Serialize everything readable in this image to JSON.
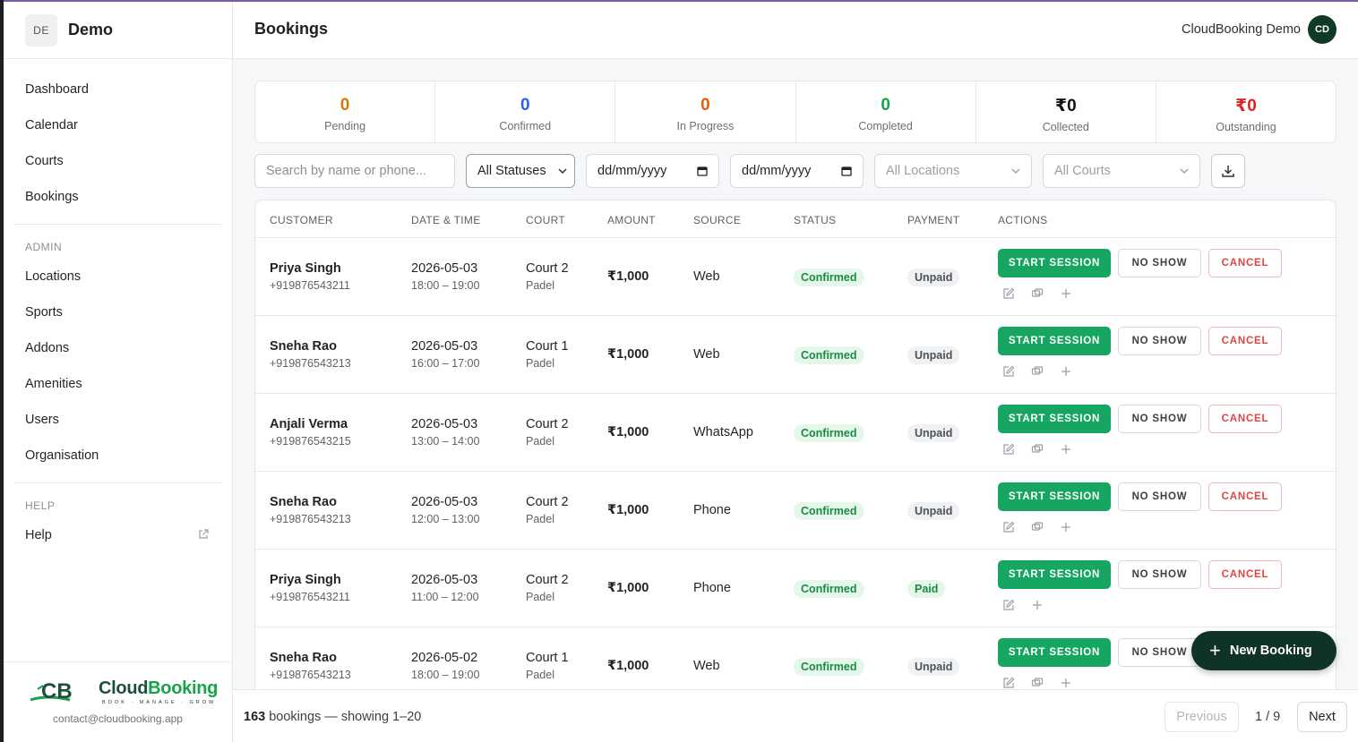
{
  "org": {
    "initials": "DE",
    "name": "Demo"
  },
  "header": {
    "title": "Bookings",
    "user_name": "CloudBooking Demo",
    "user_initials": "CD"
  },
  "sidebar": {
    "main_items": [
      "Dashboard",
      "Calendar",
      "Courts",
      "Bookings"
    ],
    "admin_label": "ADMIN",
    "admin_items": [
      "Locations",
      "Sports",
      "Addons",
      "Amenities",
      "Users",
      "Organisation"
    ],
    "help_label": "HELP",
    "help_item": "Help",
    "brand_cloud": "Cloud",
    "brand_booking": "Booking",
    "brand_tagline": "BOOK · MANAGE · GROW",
    "contact": "contact@cloudbooking.app"
  },
  "stats": [
    {
      "value": "0",
      "label": "Pending",
      "color": "#d97706"
    },
    {
      "value": "0",
      "label": "Confirmed",
      "color": "#2563eb"
    },
    {
      "value": "0",
      "label": "In Progress",
      "color": "#ea580c"
    },
    {
      "value": "0",
      "label": "Completed",
      "color": "#16a34a"
    },
    {
      "value": "₹0",
      "label": "Collected",
      "color": "#111111"
    },
    {
      "value": "₹0",
      "label": "Outstanding",
      "color": "#dc2626"
    }
  ],
  "filters": {
    "search_placeholder": "Search by name or phone...",
    "status": "All Statuses",
    "date_from": "dd/mm/yyyy",
    "date_to": "dd/mm/yyyy",
    "location": "All Locations",
    "court": "All Courts"
  },
  "table": {
    "headers": [
      "CUSTOMER",
      "DATE & TIME",
      "COURT",
      "AMOUNT",
      "SOURCE",
      "STATUS",
      "PAYMENT",
      "ACTIONS"
    ],
    "actions": {
      "start": "START SESSION",
      "noshow": "NO SHOW",
      "cancel": "CANCEL"
    },
    "rows": [
      {
        "name": "Priya Singh",
        "phone": "+919876543211",
        "date": "2026-05-03",
        "time": "18:00 – 19:00",
        "court": "Court 2",
        "sport": "Padel",
        "amount": "₹1,000",
        "source": "Web",
        "status": "Confirmed",
        "payment": "Unpaid"
      },
      {
        "name": "Sneha Rao",
        "phone": "+919876543213",
        "date": "2026-05-03",
        "time": "16:00 – 17:00",
        "court": "Court 1",
        "sport": "Padel",
        "amount": "₹1,000",
        "source": "Web",
        "status": "Confirmed",
        "payment": "Unpaid"
      },
      {
        "name": "Anjali Verma",
        "phone": "+919876543215",
        "date": "2026-05-03",
        "time": "13:00 – 14:00",
        "court": "Court 2",
        "sport": "Padel",
        "amount": "₹1,000",
        "source": "WhatsApp",
        "status": "Confirmed",
        "payment": "Unpaid"
      },
      {
        "name": "Sneha Rao",
        "phone": "+919876543213",
        "date": "2026-05-03",
        "time": "12:00 – 13:00",
        "court": "Court 2",
        "sport": "Padel",
        "amount": "₹1,000",
        "source": "Phone",
        "status": "Confirmed",
        "payment": "Unpaid"
      },
      {
        "name": "Priya Singh",
        "phone": "+919876543211",
        "date": "2026-05-03",
        "time": "11:00 – 12:00",
        "court": "Court 2",
        "sport": "Padel",
        "amount": "₹1,000",
        "source": "Phone",
        "status": "Confirmed",
        "payment": "Paid"
      },
      {
        "name": "Sneha Rao",
        "phone": "+919876543213",
        "date": "2026-05-02",
        "time": "18:00 – 19:00",
        "court": "Court 1",
        "sport": "Padel",
        "amount": "₹1,000",
        "source": "Web",
        "status": "Confirmed",
        "payment": "Unpaid"
      }
    ]
  },
  "fab_label": "New Booking",
  "footer": {
    "total": "163",
    "showing": "bookings — showing 1–20",
    "prev": "Previous",
    "page": "1 / 9",
    "next": "Next"
  }
}
